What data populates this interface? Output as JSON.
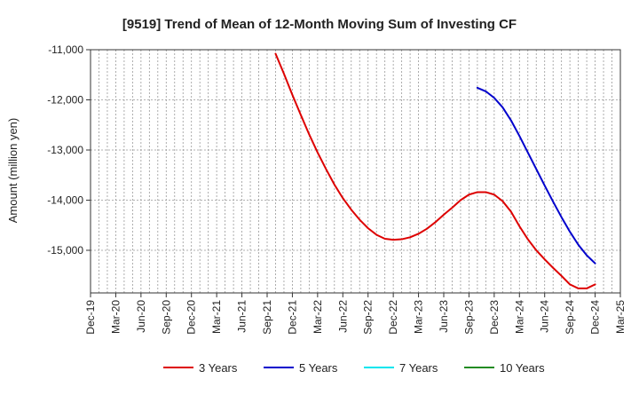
{
  "chart_data": {
    "type": "line",
    "title": "[9519]  Trend of Mean of 12-Month Moving Sum of Investing CF",
    "xlabel": "",
    "ylabel": "Amount (million yen)",
    "ylim": [
      -15850,
      -11000
    ],
    "yticks": [
      -11000,
      -12000,
      -13000,
      -14000,
      -15000
    ],
    "ytick_labels": [
      "-11,000",
      "-12,000",
      "-13,000",
      "-14,000",
      "-15,000"
    ],
    "xlim": [
      "2019-12",
      "2025-03"
    ],
    "xtick_labels": [
      "Dec-19",
      "Mar-20",
      "Jun-20",
      "Sep-20",
      "Dec-20",
      "Mar-21",
      "Jun-21",
      "Sep-21",
      "Dec-21",
      "Mar-22",
      "Jun-22",
      "Sep-22",
      "Dec-22",
      "Mar-23",
      "Jun-23",
      "Sep-23",
      "Dec-23",
      "Mar-24",
      "Jun-24",
      "Sep-24",
      "Dec-24",
      "Mar-25"
    ],
    "grid": true,
    "legend_position": "bottom",
    "series": [
      {
        "name": "3 Years",
        "color": "#dd0000",
        "points": [
          [
            "2021-10",
            -11080
          ],
          [
            "2021-11",
            -11480
          ],
          [
            "2021-12",
            -11900
          ],
          [
            "2022-01",
            -12300
          ],
          [
            "2022-02",
            -12690
          ],
          [
            "2022-03",
            -13050
          ],
          [
            "2022-04",
            -13380
          ],
          [
            "2022-05",
            -13690
          ],
          [
            "2022-06",
            -13960
          ],
          [
            "2022-07",
            -14190
          ],
          [
            "2022-08",
            -14390
          ],
          [
            "2022-09",
            -14560
          ],
          [
            "2022-10",
            -14690
          ],
          [
            "2022-11",
            -14770
          ],
          [
            "2022-12",
            -14790
          ],
          [
            "2023-01",
            -14780
          ],
          [
            "2023-02",
            -14740
          ],
          [
            "2023-03",
            -14670
          ],
          [
            "2023-04",
            -14570
          ],
          [
            "2023-05",
            -14440
          ],
          [
            "2023-06",
            -14290
          ],
          [
            "2023-07",
            -14150
          ],
          [
            "2023-08",
            -14000
          ],
          [
            "2023-09",
            -13890
          ],
          [
            "2023-10",
            -13840
          ],
          [
            "2023-11",
            -13840
          ],
          [
            "2023-12",
            -13890
          ],
          [
            "2024-01",
            -14020
          ],
          [
            "2024-02",
            -14230
          ],
          [
            "2024-03",
            -14520
          ],
          [
            "2024-04",
            -14780
          ],
          [
            "2024-05",
            -15000
          ],
          [
            "2024-06",
            -15180
          ],
          [
            "2024-07",
            -15350
          ],
          [
            "2024-08",
            -15510
          ],
          [
            "2024-09",
            -15680
          ],
          [
            "2024-10",
            -15760
          ],
          [
            "2024-11",
            -15760
          ],
          [
            "2024-12",
            -15680
          ]
        ]
      },
      {
        "name": "5 Years",
        "color": "#0000cc",
        "points": [
          [
            "2023-10",
            -11760
          ],
          [
            "2023-11",
            -11830
          ],
          [
            "2023-12",
            -11960
          ],
          [
            "2024-01",
            -12150
          ],
          [
            "2024-02",
            -12410
          ],
          [
            "2024-03",
            -12720
          ],
          [
            "2024-04",
            -13050
          ],
          [
            "2024-05",
            -13380
          ],
          [
            "2024-06",
            -13710
          ],
          [
            "2024-07",
            -14030
          ],
          [
            "2024-08",
            -14340
          ],
          [
            "2024-09",
            -14630
          ],
          [
            "2024-10",
            -14890
          ],
          [
            "2024-11",
            -15100
          ],
          [
            "2024-12",
            -15260
          ]
        ]
      },
      {
        "name": "7 Years",
        "color": "#00e5ee",
        "points": []
      },
      {
        "name": "10 Years",
        "color": "#228b22",
        "points": []
      }
    ]
  }
}
